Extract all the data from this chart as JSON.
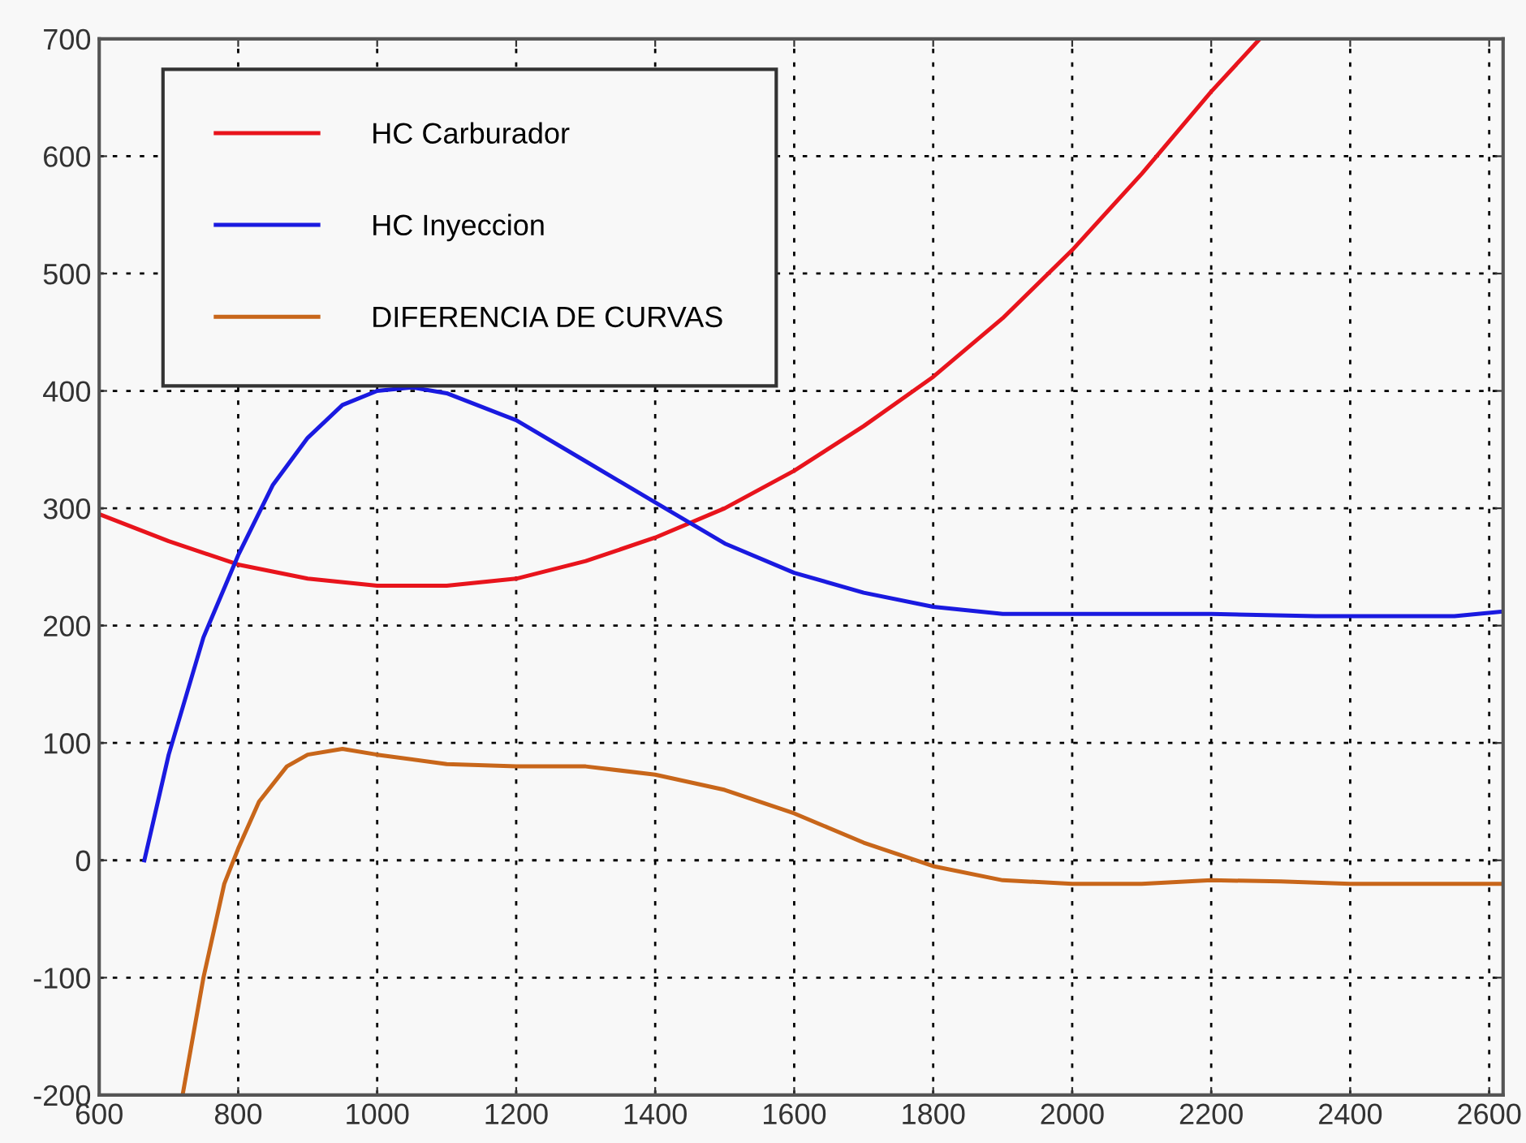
{
  "chart_data": {
    "type": "line",
    "xlim": [
      600,
      2620
    ],
    "xticks": [
      600,
      800,
      1000,
      1200,
      1400,
      1600,
      1800,
      2000,
      2200,
      2400,
      2600
    ],
    "ylim": [
      -200,
      700
    ],
    "yticks": [
      -200,
      -100,
      0,
      100,
      200,
      300,
      400,
      500,
      600,
      700
    ],
    "grid": true,
    "legend": "top left",
    "line_style": "solid",
    "marker": "none",
    "series": [
      {
        "name": "HC Carburador",
        "color": "#e8141c",
        "x": [
          600,
          700,
          800,
          900,
          1000,
          1100,
          1200,
          1300,
          1400,
          1500,
          1600,
          1700,
          1800,
          1900,
          2000,
          2100,
          2200,
          2270
        ],
        "values": [
          295,
          272,
          252,
          240,
          234,
          234,
          240,
          255,
          275,
          300,
          332,
          370,
          412,
          462,
          520,
          585,
          655,
          700
        ]
      },
      {
        "name": "HC Inyeccion",
        "color": "#1a1ae0",
        "x": [
          665,
          700,
          750,
          800,
          850,
          900,
          950,
          1000,
          1050,
          1100,
          1200,
          1300,
          1400,
          1500,
          1600,
          1700,
          1800,
          1900,
          2000,
          2200,
          2350,
          2550,
          2620
        ],
        "values": [
          0,
          90,
          190,
          260,
          320,
          360,
          388,
          400,
          403,
          398,
          375,
          340,
          305,
          270,
          245,
          228,
          216,
          210,
          210,
          210,
          208,
          208,
          212
        ]
      },
      {
        "name": "DIFERENCIA DE CURVAS",
        "color": "#c8661a",
        "x": [
          720,
          750,
          780,
          800,
          830,
          870,
          900,
          950,
          1000,
          1100,
          1200,
          1300,
          1400,
          1500,
          1600,
          1700,
          1800,
          1900,
          2000,
          2100,
          2200,
          2300,
          2400,
          2620
        ],
        "values": [
          -200,
          -100,
          -20,
          10,
          50,
          80,
          90,
          95,
          90,
          82,
          80,
          80,
          73,
          60,
          40,
          15,
          -5,
          -17,
          -20,
          -20,
          -17,
          -18,
          -20,
          -20
        ]
      }
    ]
  }
}
